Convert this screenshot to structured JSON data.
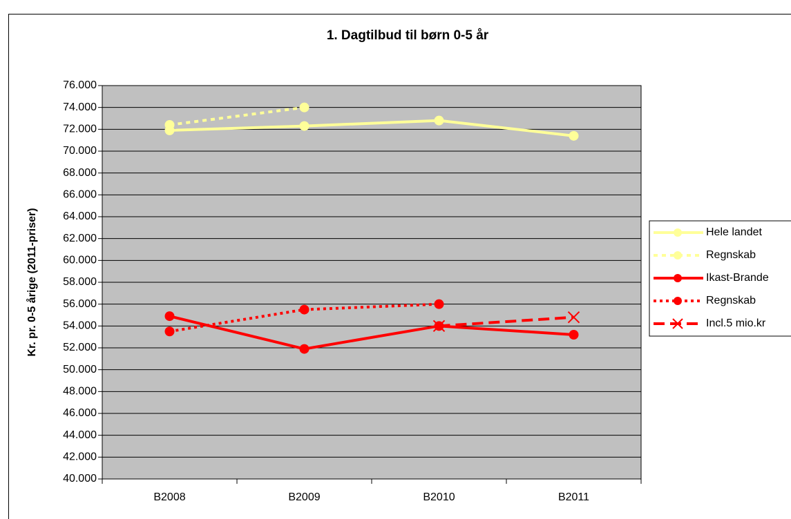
{
  "chart_data": {
    "type": "line",
    "title": "1. Dagtilbud til børn 0-5 år",
    "y_label": "Kr. pr. 0-5 årige (2011-priser)",
    "categories": [
      "B2008",
      "B2009",
      "B2010",
      "B2011"
    ],
    "series": [
      {
        "name": "Hele landet",
        "color": "#ffff99",
        "dash": "solid",
        "marker": "circle",
        "values": [
          71900,
          72300,
          72800,
          71400
        ]
      },
      {
        "name": "Regnskab",
        "color": "#ffff99",
        "dash": "dashed",
        "marker": "circle",
        "values": [
          72400,
          74000,
          null,
          null
        ]
      },
      {
        "name": "Ikast-Brande",
        "color": "#ff0000",
        "dash": "solid",
        "marker": "circle",
        "values": [
          54900,
          51900,
          54000,
          53200
        ]
      },
      {
        "name": "Regnskab",
        "color": "#ff0000",
        "dash": "dotted",
        "marker": "circle",
        "values": [
          53500,
          55500,
          56000,
          null
        ]
      },
      {
        "name": "Incl.5 mio.kr",
        "color": "#ff0000",
        "dash": "longdash",
        "marker": "x",
        "values": [
          null,
          null,
          54000,
          54800
        ]
      }
    ],
    "ylim": [
      40000,
      76000
    ],
    "yticks": [
      {
        "value": 40000,
        "label": "40.000"
      },
      {
        "value": 42000,
        "label": "42.000"
      },
      {
        "value": 44000,
        "label": "44.000"
      },
      {
        "value": 46000,
        "label": "46.000"
      },
      {
        "value": 48000,
        "label": "48.000"
      },
      {
        "value": 50000,
        "label": "50.000"
      },
      {
        "value": 52000,
        "label": "52.000"
      },
      {
        "value": 54000,
        "label": "54.000"
      },
      {
        "value": 56000,
        "label": "56.000"
      },
      {
        "value": 58000,
        "label": "58.000"
      },
      {
        "value": 60000,
        "label": "60.000"
      },
      {
        "value": 62000,
        "label": "62.000"
      },
      {
        "value": 64000,
        "label": "64.000"
      },
      {
        "value": 66000,
        "label": "66.000"
      },
      {
        "value": 68000,
        "label": "68.000"
      },
      {
        "value": 70000,
        "label": "70.000"
      },
      {
        "value": 72000,
        "label": "72.000"
      },
      {
        "value": 74000,
        "label": "74.000"
      },
      {
        "value": 76000,
        "label": "76.000"
      }
    ],
    "grid": true,
    "legend": "right"
  }
}
